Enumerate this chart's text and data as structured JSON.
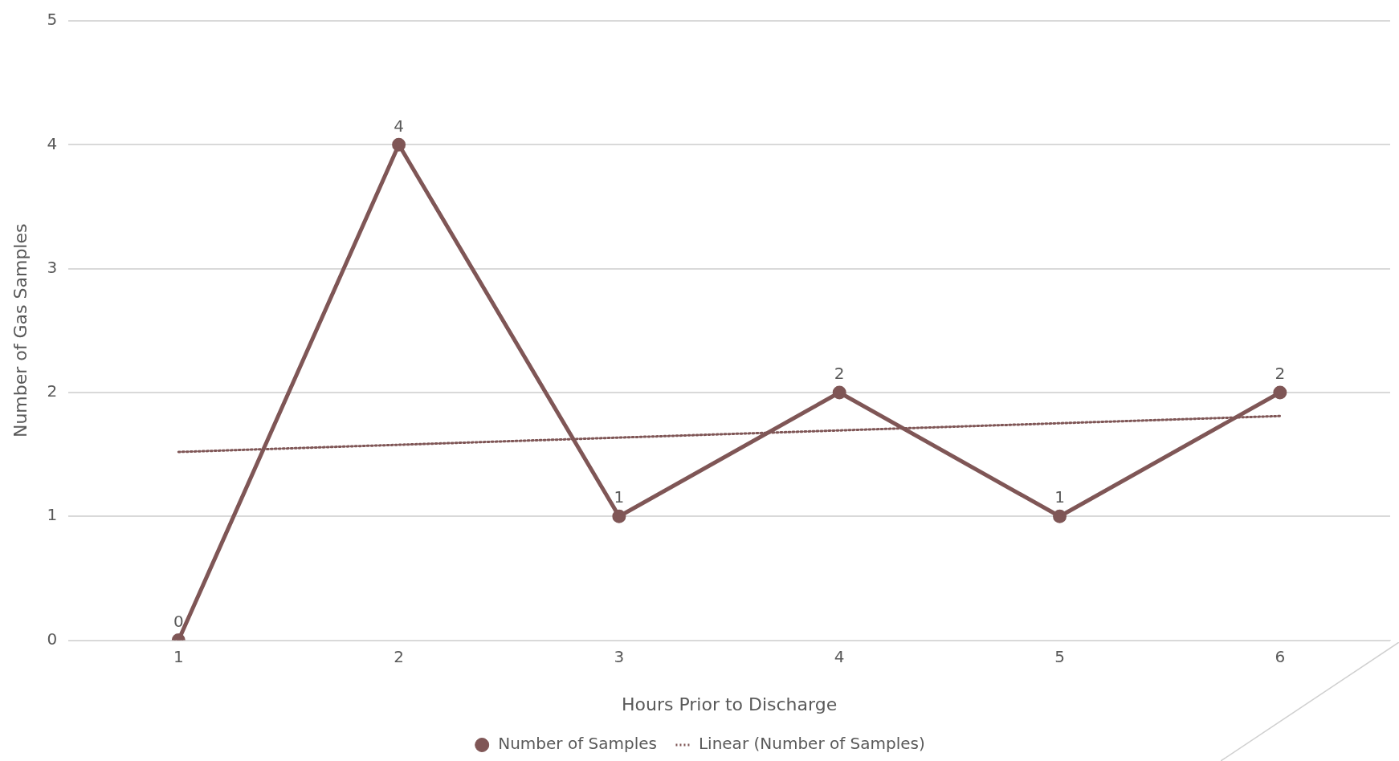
{
  "chart_data": {
    "type": "line",
    "xlabel": "Hours Prior to Discharge",
    "ylabel": "Number of Gas Samples",
    "x": [
      1,
      2,
      3,
      4,
      5,
      6
    ],
    "series": [
      {
        "name": "Number of Samples",
        "color": "#7f5656",
        "values": [
          0,
          4,
          1,
          2,
          1,
          2
        ],
        "value_labels": [
          "0",
          "4",
          "1",
          "2",
          "1",
          "2"
        ],
        "marker": "circle",
        "line_style": "solid"
      },
      {
        "name": "Linear (Number of Samples)",
        "type": "line",
        "color": "#7f5656",
        "x": [
          1,
          6
        ],
        "values": [
          1.52,
          1.81
        ],
        "marker": "none",
        "line_style": "dotted"
      }
    ],
    "xlim": [
      0.5,
      6.5
    ],
    "xticks": [
      1,
      2,
      3,
      4,
      5,
      6
    ],
    "ylim": [
      0,
      5
    ],
    "yticks": [
      0,
      1,
      2,
      3,
      4,
      5
    ],
    "grid": "y",
    "legend": "bottom"
  }
}
